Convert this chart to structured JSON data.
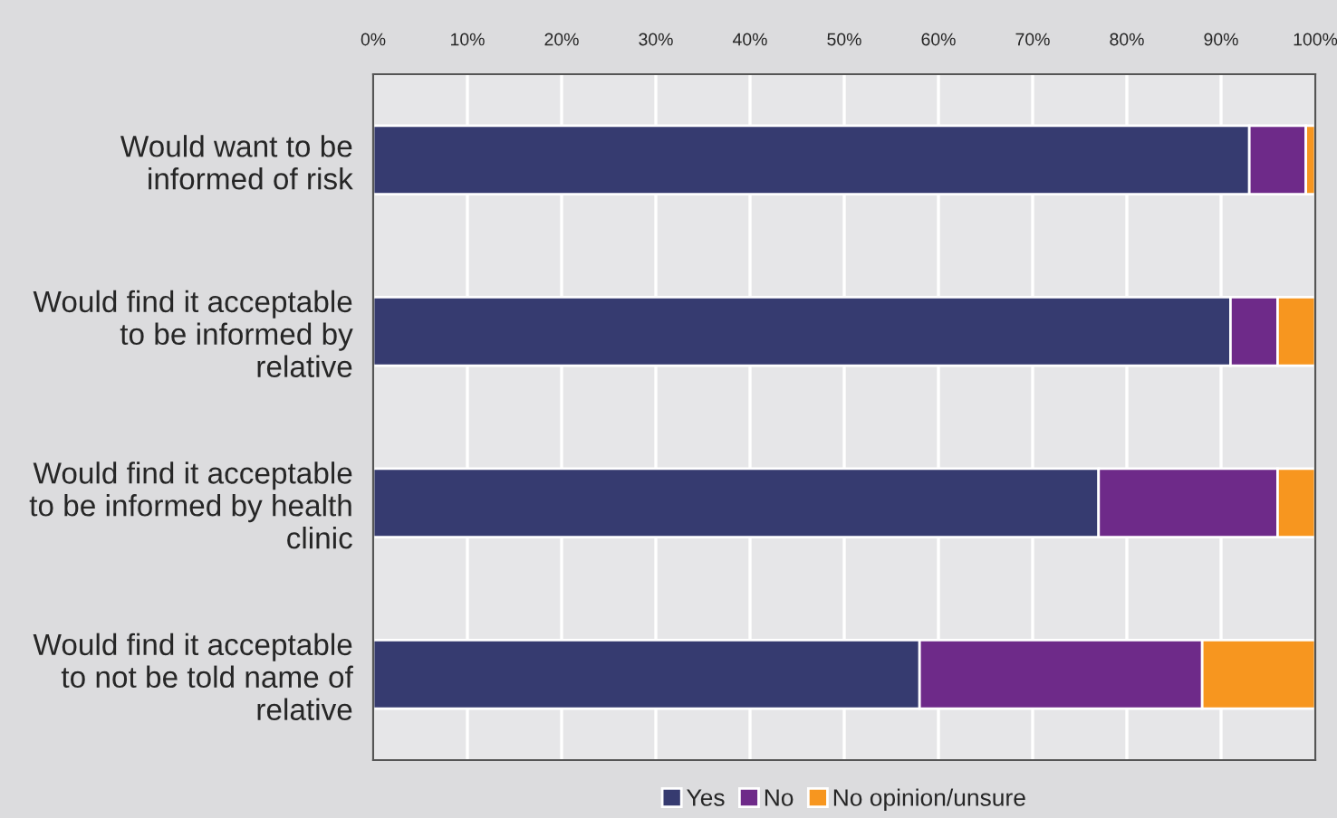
{
  "chart_data": {
    "type": "bar",
    "orientation": "horizontal",
    "stacked": true,
    "categories": [
      "Would want to be\ninformed of risk",
      "Would find it acceptable\nto be informed by\nrelative",
      "Would find it acceptable\nto be informed by health\nclinic",
      "Would find it acceptable\nto not be told name of\nrelative"
    ],
    "series": [
      {
        "name": "Yes",
        "color": "#363b70",
        "values": [
          93,
          91,
          77,
          58
        ]
      },
      {
        "name": "No",
        "color": "#6e2a89",
        "values": [
          6,
          5,
          19,
          30
        ]
      },
      {
        "name": "No opinion/unsure",
        "color": "#f7961f",
        "values": [
          1,
          4,
          4,
          12
        ]
      }
    ],
    "xlim": [
      0,
      100
    ],
    "xticks": [
      {
        "value": 0,
        "label": "0%"
      },
      {
        "value": 10,
        "label": "10%"
      },
      {
        "value": 20,
        "label": "20%"
      },
      {
        "value": 30,
        "label": "30%"
      },
      {
        "value": 40,
        "label": "40%"
      },
      {
        "value": 50,
        "label": "50%"
      },
      {
        "value": 60,
        "label": "60%"
      },
      {
        "value": 70,
        "label": "70%"
      },
      {
        "value": 80,
        "label": "80%"
      },
      {
        "value": 90,
        "label": "90%"
      },
      {
        "value": 100,
        "label": "100%"
      }
    ],
    "grid": "x",
    "legend": "bottom"
  }
}
